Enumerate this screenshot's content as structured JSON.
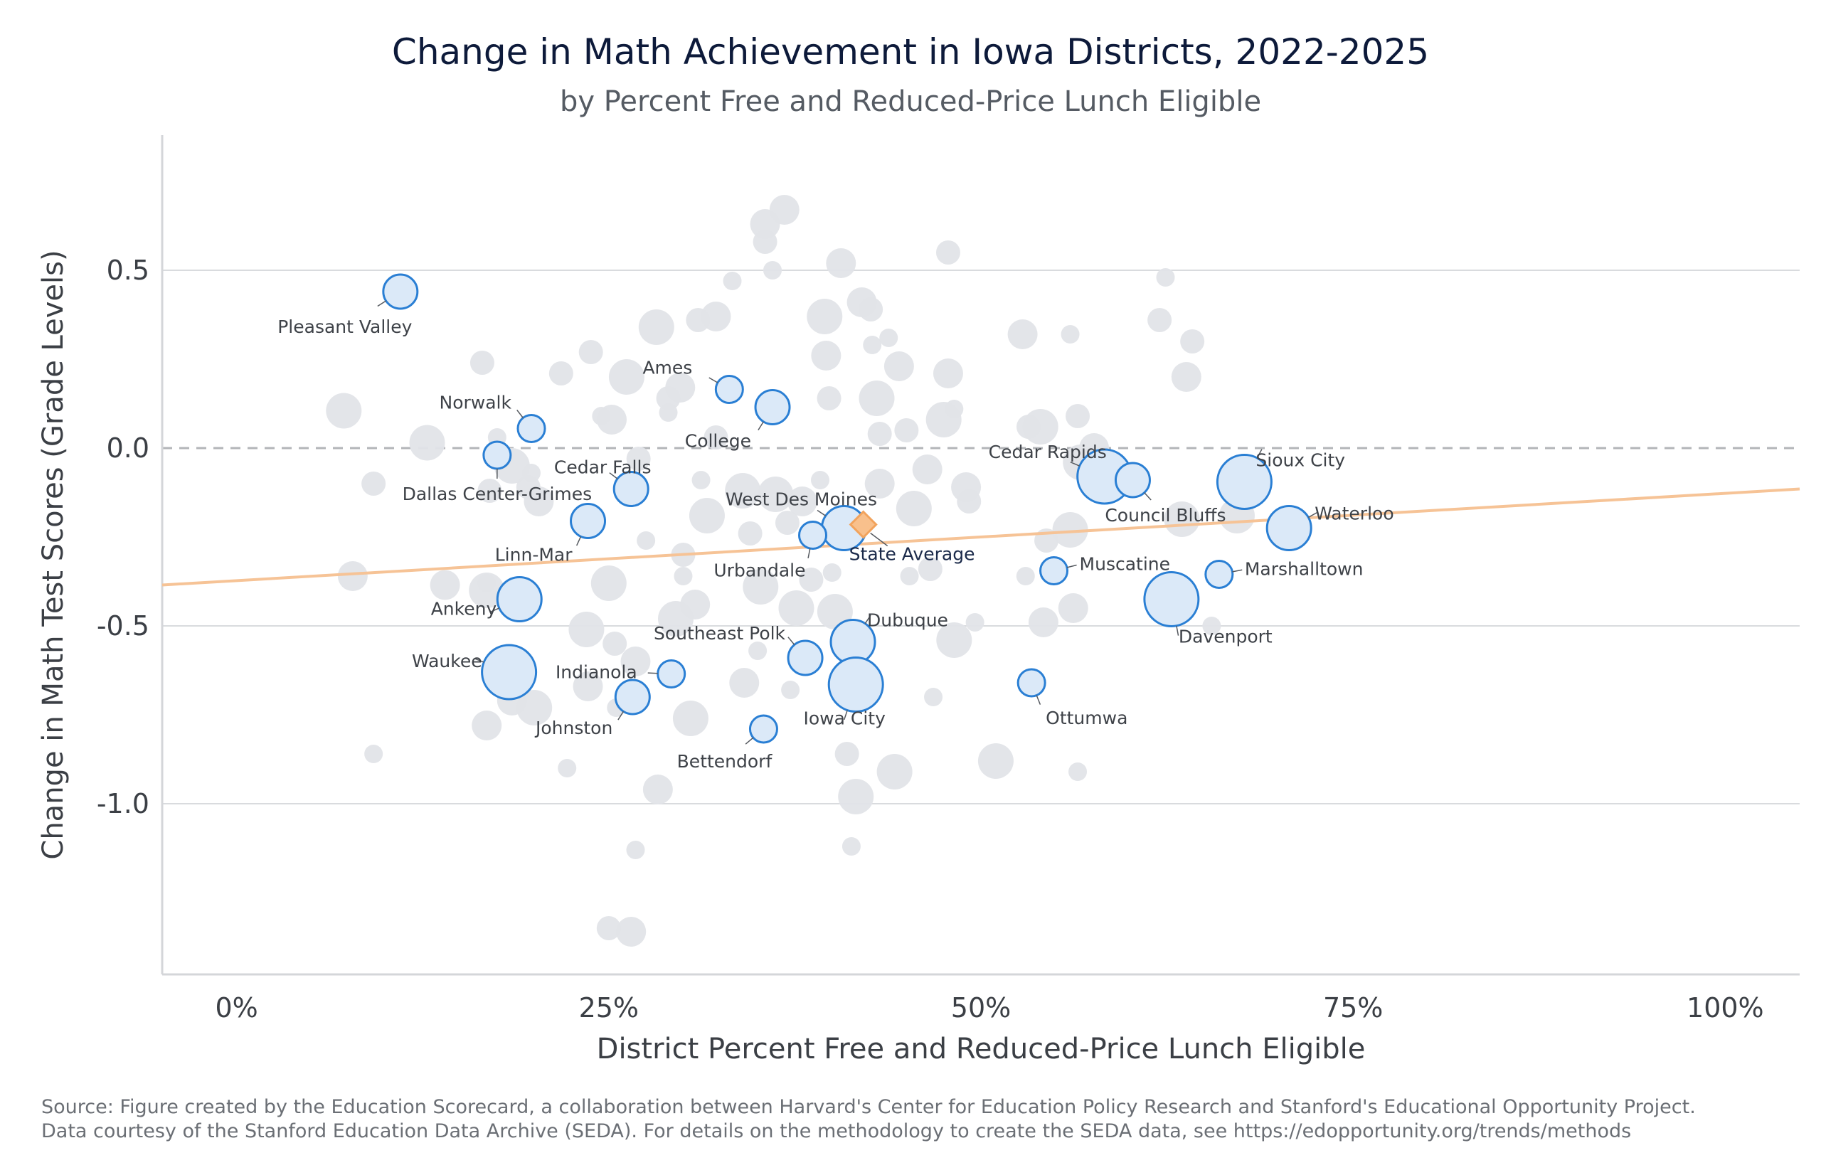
{
  "chart_data": {
    "type": "scatter",
    "title": "Change in Math Achievement in Iowa Districts, 2022-2025",
    "subtitle": "by Percent Free and Reduced-Price Lunch Eligible",
    "xlabel": "District Percent Free and Reduced-Price Lunch Eligible",
    "ylabel": "Change in Math Test Scores (Grade Levels)",
    "xlim": [
      -0.05,
      1.05
    ],
    "ylim": [
      -1.48,
      0.88
    ],
    "x_ticks": [
      {
        "value": 0,
        "label": "0%"
      },
      {
        "value": 0.25,
        "label": "25%"
      },
      {
        "value": 0.5,
        "label": "50%"
      },
      {
        "value": 0.75,
        "label": "75%"
      },
      {
        "value": 1.0,
        "label": "100%"
      }
    ],
    "y_ticks": [
      {
        "value": 0.5,
        "label": "0.5"
      },
      {
        "value": 0.0,
        "label": "0.0"
      },
      {
        "value": -0.5,
        "label": "-0.5"
      },
      {
        "value": -1.0,
        "label": "-1.0"
      }
    ],
    "grid": "horizontal",
    "zero_line": "dashed",
    "trend_line": {
      "x": [
        -0.05,
        1.05
      ],
      "y": [
        -0.385,
        -0.115
      ],
      "color": "#f6c396"
    },
    "colors": {
      "highlight_fill": "#dbe9f8",
      "highlight_stroke": "#2a7fd4",
      "background_points": "#e1e4e8",
      "state_average": "#f2a35c",
      "grid": "#d9dbde"
    },
    "highlighted_districts": [
      {
        "name": "Pleasant Valley",
        "x": 0.11,
        "y": 0.44,
        "size": 1
      },
      {
        "name": "Norwalk",
        "x": 0.198,
        "y": 0.055,
        "size": 0
      },
      {
        "name": "Dallas Center-Grimes",
        "x": 0.175,
        "y": -0.02,
        "size": 0
      },
      {
        "name": "Ames",
        "x": 0.331,
        "y": 0.165,
        "size": 0
      },
      {
        "name": "College",
        "x": 0.36,
        "y": 0.115,
        "size": 1
      },
      {
        "name": "Cedar Falls",
        "x": 0.265,
        "y": -0.115,
        "size": 1
      },
      {
        "name": "Linn-Mar",
        "x": 0.236,
        "y": -0.205,
        "size": 1
      },
      {
        "name": "West Des Moines",
        "x": 0.408,
        "y": -0.225,
        "size": 2
      },
      {
        "name": "Urbandale",
        "x": 0.387,
        "y": -0.245,
        "size": 0
      },
      {
        "name": "Ankeny",
        "x": 0.19,
        "y": -0.425,
        "size": 2
      },
      {
        "name": "Waukee",
        "x": 0.183,
        "y": -0.63,
        "size": 3
      },
      {
        "name": "Indianola",
        "x": 0.292,
        "y": -0.635,
        "size": 0
      },
      {
        "name": "Johnston",
        "x": 0.266,
        "y": -0.7,
        "size": 1
      },
      {
        "name": "Southeast Polk",
        "x": 0.382,
        "y": -0.59,
        "size": 1
      },
      {
        "name": "Dubuque",
        "x": 0.414,
        "y": -0.545,
        "size": 2
      },
      {
        "name": "Iowa City",
        "x": 0.416,
        "y": -0.665,
        "size": 3
      },
      {
        "name": "Bettendorf",
        "x": 0.354,
        "y": -0.79,
        "size": 0
      },
      {
        "name": "Cedar Rapids",
        "x": 0.583,
        "y": -0.08,
        "size": 3
      },
      {
        "name": "Council Bluffs",
        "x": 0.602,
        "y": -0.09,
        "size": 1
      },
      {
        "name": "Muscatine",
        "x": 0.549,
        "y": -0.345,
        "size": 0
      },
      {
        "name": "Davenport",
        "x": 0.628,
        "y": -0.425,
        "size": 3
      },
      {
        "name": "Ottumwa",
        "x": 0.534,
        "y": -0.66,
        "size": 0
      },
      {
        "name": "Sioux City",
        "x": 0.677,
        "y": -0.095,
        "size": 3
      },
      {
        "name": "Waterloo",
        "x": 0.707,
        "y": -0.225,
        "size": 2
      },
      {
        "name": "Marshalltown",
        "x": 0.66,
        "y": -0.355,
        "size": 0
      }
    ],
    "state_average": {
      "name": "State Average",
      "x": 0.421,
      "y": -0.215
    },
    "other_districts": [
      [
        0.072,
        0.105
      ],
      [
        0.078,
        -0.36
      ],
      [
        0.092,
        -0.1
      ],
      [
        0.092,
        -0.86
      ],
      [
        0.128,
        0.015
      ],
      [
        0.14,
        -0.385
      ],
      [
        0.165,
        0.24
      ],
      [
        0.168,
        -0.38
      ],
      [
        0.168,
        -0.4
      ],
      [
        0.168,
        -0.78
      ],
      [
        0.17,
        -0.12
      ],
      [
        0.175,
        0.03
      ],
      [
        0.185,
        -0.05
      ],
      [
        0.185,
        -0.71
      ],
      [
        0.196,
        -0.11
      ],
      [
        0.198,
        -0.07
      ],
      [
        0.2,
        -0.73
      ],
      [
        0.203,
        -0.15
      ],
      [
        0.218,
        0.21
      ],
      [
        0.222,
        -0.9
      ],
      [
        0.235,
        -0.51
      ],
      [
        0.236,
        -0.67
      ],
      [
        0.238,
        0.27
      ],
      [
        0.245,
        0.09
      ],
      [
        0.25,
        -0.38
      ],
      [
        0.252,
        0.08
      ],
      [
        0.254,
        -0.55
      ],
      [
        0.255,
        -0.73
      ],
      [
        0.262,
        0.2
      ],
      [
        0.268,
        -0.6
      ],
      [
        0.27,
        -0.03
      ],
      [
        0.275,
        -0.26
      ],
      [
        0.282,
        0.34
      ],
      [
        0.283,
        -0.96
      ],
      [
        0.29,
        0.14
      ],
      [
        0.29,
        0.1
      ],
      [
        0.295,
        -0.48
      ],
      [
        0.298,
        0.17
      ],
      [
        0.3,
        -0.3
      ],
      [
        0.3,
        -0.36
      ],
      [
        0.305,
        -0.76
      ],
      [
        0.308,
        -0.44
      ],
      [
        0.31,
        0.36
      ],
      [
        0.312,
        -0.09
      ],
      [
        0.316,
        -0.19
      ],
      [
        0.322,
        0.37
      ],
      [
        0.322,
        0.03
      ],
      [
        0.333,
        0.47
      ],
      [
        0.34,
        -0.12
      ],
      [
        0.341,
        -0.66
      ],
      [
        0.345,
        -0.24
      ],
      [
        0.35,
        -0.57
      ],
      [
        0.352,
        -0.39
      ],
      [
        0.355,
        0.63
      ],
      [
        0.355,
        0.58
      ],
      [
        0.36,
        0.5
      ],
      [
        0.362,
        -0.13
      ],
      [
        0.368,
        0.67
      ],
      [
        0.37,
        -0.21
      ],
      [
        0.372,
        -0.68
      ],
      [
        0.376,
        -0.45
      ],
      [
        0.38,
        -0.15
      ],
      [
        0.386,
        -0.37
      ],
      [
        0.392,
        -0.09
      ],
      [
        0.395,
        0.37
      ],
      [
        0.396,
        0.26
      ],
      [
        0.398,
        0.14
      ],
      [
        0.4,
        -0.35
      ],
      [
        0.402,
        -0.46
      ],
      [
        0.406,
        0.52
      ],
      [
        0.41,
        -0.86
      ],
      [
        0.413,
        -1.12
      ],
      [
        0.416,
        -0.98
      ],
      [
        0.42,
        0.41
      ],
      [
        0.426,
        0.39
      ],
      [
        0.427,
        0.29
      ],
      [
        0.43,
        0.14
      ],
      [
        0.432,
        -0.1
      ],
      [
        0.432,
        0.04
      ],
      [
        0.438,
        0.31
      ],
      [
        0.442,
        -0.91
      ],
      [
        0.445,
        0.23
      ],
      [
        0.45,
        0.05
      ],
      [
        0.452,
        -0.36
      ],
      [
        0.455,
        -0.17
      ],
      [
        0.464,
        -0.06
      ],
      [
        0.466,
        -0.34
      ],
      [
        0.468,
        -0.7
      ],
      [
        0.475,
        0.08
      ],
      [
        0.478,
        0.21
      ],
      [
        0.478,
        0.55
      ],
      [
        0.482,
        0.11
      ],
      [
        0.482,
        -0.54
      ],
      [
        0.49,
        -0.11
      ],
      [
        0.492,
        -0.15
      ],
      [
        0.496,
        -0.49
      ],
      [
        0.51,
        -0.88
      ],
      [
        0.528,
        0.32
      ],
      [
        0.532,
        0.06
      ],
      [
        0.53,
        -0.36
      ],
      [
        0.54,
        0.06
      ],
      [
        0.542,
        -0.49
      ],
      [
        0.544,
        -0.26
      ],
      [
        0.56,
        0.32
      ],
      [
        0.56,
        -0.23
      ],
      [
        0.562,
        -0.45
      ],
      [
        0.565,
        0.09
      ],
      [
        0.565,
        -0.91
      ],
      [
        0.567,
        -0.04
      ],
      [
        0.576,
        0.0
      ],
      [
        0.62,
        0.36
      ],
      [
        0.624,
        0.48
      ],
      [
        0.635,
        -0.2
      ],
      [
        0.638,
        0.2
      ],
      [
        0.642,
        0.3
      ],
      [
        0.655,
        -0.5
      ],
      [
        0.672,
        -0.19
      ],
      [
        0.265,
        -1.36
      ],
      [
        0.25,
        -1.35
      ],
      [
        0.268,
        -1.13
      ]
    ]
  },
  "footer": {
    "line1": "Source: Figure created by the Education Scorecard, a collaboration between Harvard's Center for Education Policy Research and Stanford's Educational Opportunity Project.",
    "line2": "Data courtesy of the Stanford Education Data Archive (SEDA). For details on the methodology to create the SEDA data, see https://edopportunity.org/trends/methods"
  }
}
